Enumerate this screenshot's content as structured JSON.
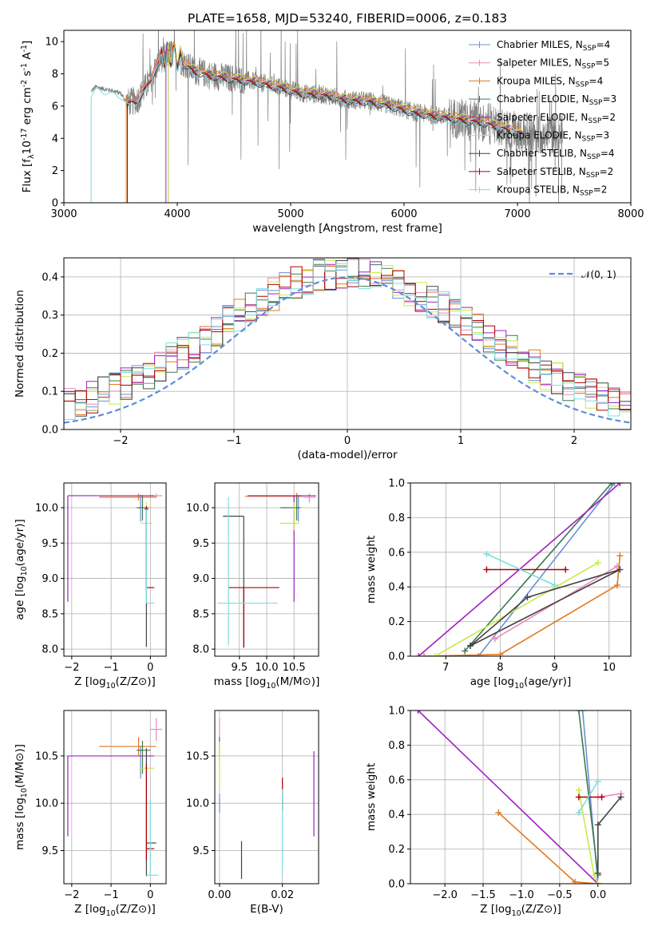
{
  "page": {
    "title": "PLATE=1658, MJD=53240, FIBERID=0006, z=0.183"
  },
  "colors": {
    "Chabrier MILES": "#6b8fd6",
    "Salpeter MILES": "#e98bbd",
    "Kroupa MILES": "#e07a1f",
    "Chabrier ELODIE": "#3d7a4f",
    "Salpeter ELODIE": "#a020c0",
    "Kroupa ELODIE": "#c8ea4a",
    "Chabrier STELIB": "#444444",
    "Salpeter STELIB": "#b00000",
    "Kroupa STELIB": "#7fdde0",
    "data": "#808080",
    "normal": "#5b8ed8"
  },
  "chart_data": [
    {
      "id": "spectrum",
      "type": "line",
      "title": "PLATE=1658, MJD=53240, FIBERID=0006, z=0.183",
      "xlabel": "wavelength [Angstrom, rest frame]",
      "ylabel": "Flux [f$_{\\lambda}$10$^{-17}$ erg cm$^{-2}$ s$^{-1}$ A$^{-1}$]",
      "xlim": [
        3000,
        8000
      ],
      "ylim": [
        0,
        10.7
      ],
      "xticks": [
        3000,
        4000,
        5000,
        6000,
        7000,
        8000
      ],
      "yticks": [
        0,
        2,
        4,
        6,
        8,
        10
      ],
      "grid": false,
      "legend_position": "top-right",
      "legend": [
        {
          "label": "Chabrier MILES, N",
          "sub": "SSP",
          "suffix": "=4",
          "color": "Chabrier MILES"
        },
        {
          "label": "Salpeter MILES, N",
          "sub": "SSP",
          "suffix": "=5",
          "color": "Salpeter MILES"
        },
        {
          "label": "Kroupa MILES, N",
          "sub": "SSP",
          "suffix": "=4",
          "color": "Kroupa MILES"
        },
        {
          "label": "Chabrier ELODIE, N",
          "sub": "SSP",
          "suffix": "=3",
          "color": "Chabrier ELODIE"
        },
        {
          "label": "Salpeter ELODIE, N",
          "sub": "SSP",
          "suffix": "=2",
          "color": "Salpeter ELODIE"
        },
        {
          "label": "Kroupa ELODIE, N",
          "sub": "SSP",
          "suffix": "=3",
          "color": "Kroupa ELODIE"
        },
        {
          "label": "Chabrier STELIB, N",
          "sub": "SSP",
          "suffix": "=4",
          "color": "Chabrier STELIB"
        },
        {
          "label": "Salpeter STELIB, N",
          "sub": "SSP",
          "suffix": "=2",
          "color": "Salpeter STELIB"
        },
        {
          "label": "Kroupa STELIB, N",
          "sub": "SSP",
          "suffix": "=2",
          "color": "Kroupa STELIB"
        }
      ],
      "continuum": {
        "x": [
          3240,
          3280,
          3330,
          3400,
          3500,
          3560,
          3650,
          3750,
          3850,
          3950,
          4050,
          4150,
          4300,
          4500,
          4700,
          4900,
          5100,
          5300,
          5500,
          5700,
          5900,
          6100,
          6300,
          6500,
          6700,
          6900,
          7050
        ],
        "y": [
          6.9,
          7.2,
          7.1,
          7.0,
          6.8,
          6.2,
          6.4,
          7.5,
          8.9,
          9.3,
          8.7,
          8.2,
          7.9,
          7.7,
          7.5,
          7.2,
          6.8,
          6.7,
          6.4,
          6.3,
          6.0,
          5.6,
          5.4,
          5.2,
          5.0,
          4.6,
          4.3
        ]
      },
      "model_start_wavelength": [
        3560,
        3560,
        3550,
        3920,
        3900,
        3920,
        3560,
        3560,
        3240
      ],
      "data_range": [
        3240,
        7400
      ]
    },
    {
      "id": "residuals",
      "type": "histogram",
      "xlabel": "(data-model)/error",
      "ylabel": "Normed distribution",
      "xlim": [
        -2.5,
        2.5
      ],
      "ylim": [
        0,
        0.45
      ],
      "xticks": [
        -2,
        -1,
        0,
        1,
        2
      ],
      "yticks": [
        0.0,
        0.1,
        0.2,
        0.3,
        0.4
      ],
      "grid": true,
      "legend_position": "top-right",
      "legend": [
        {
          "label": "𝒩(0, 1)",
          "style": "dashed",
          "color": "normal"
        }
      ],
      "bin_width": 0.1,
      "normal": {
        "mean": 0,
        "sigma": 1
      }
    },
    {
      "id": "age-vs-Z",
      "type": "errorbar",
      "xlabel": "Z [log$_{10}$(Z/Z$_\\odot$)]",
      "ylabel": "age  [log$_{10}$(age/yr)]",
      "xlim": [
        -2.2,
        0.4
      ],
      "ylim": [
        7.9,
        10.35
      ],
      "xticks": [
        -2,
        -1,
        0
      ],
      "yticks": [
        8.0,
        8.5,
        9.0,
        9.5,
        10.0
      ],
      "grid": true,
      "points": [
        {
          "x": -0.25,
          "y": 10.0,
          "xerr": [
            0.05,
            0.05
          ],
          "yerr": [
            0.2,
            0.18
          ],
          "color": "Chabrier MILES"
        },
        {
          "x": 0.15,
          "y": 10.17,
          "xerr": [
            0.15,
            0.15
          ],
          "yerr": [
            0.03,
            0.03
          ],
          "color": "Salpeter MILES"
        },
        {
          "x": -0.3,
          "y": 10.15,
          "xerr": [
            1.0,
            0.45
          ],
          "yerr": [
            0.05,
            0.05
          ],
          "color": "Kroupa MILES"
        },
        {
          "x": -0.2,
          "y": 10.0,
          "xerr": [
            0.15,
            0.15
          ],
          "yerr": [
            0.18,
            0.18
          ],
          "color": "Chabrier ELODIE"
        },
        {
          "x": -2.1,
          "y": 10.17,
          "xerr": [
            0.0,
            2.2
          ],
          "yerr": [
            1.5,
            0.0
          ],
          "color": "Salpeter ELODIE"
        },
        {
          "x": -0.1,
          "y": 9.78,
          "xerr": [
            0.15,
            0.15
          ],
          "yerr": [
            0.1,
            0.3
          ],
          "color": "Kroupa ELODIE"
        },
        {
          "x": -0.1,
          "y": 9.98,
          "xerr": [
            0.05,
            0.05
          ],
          "yerr": [
            1.95,
            0.0
          ],
          "color": "Chabrier STELIB"
        },
        {
          "x": -0.1,
          "y": 8.87,
          "xerr": [
            0.0,
            0.2
          ],
          "yerr": [
            0.0,
            1.15
          ],
          "color": "Salpeter STELIB"
        },
        {
          "x": -0.1,
          "y": 8.65,
          "xerr": [
            0.0,
            0.2
          ],
          "yerr": [
            0.0,
            1.33
          ],
          "color": "Kroupa STELIB"
        }
      ]
    },
    {
      "id": "age-vs-mass",
      "type": "errorbar",
      "xlabel": "mass [log$_{10}$(M/M$_\\odot$)]",
      "ylabel": "",
      "xlim": [
        9.05,
        10.95
      ],
      "ylim": [
        7.9,
        10.35
      ],
      "xticks": [
        9.5,
        10.0,
        10.5
      ],
      "yticks": [
        8.0,
        8.5,
        9.0,
        9.5,
        10.0
      ],
      "grid": true,
      "points": [
        {
          "x": 10.58,
          "y": 10.0,
          "xerr": [
            0.05,
            0.05
          ],
          "yerr": [
            0.2,
            0.18
          ],
          "color": "Chabrier MILES"
        },
        {
          "x": 10.78,
          "y": 10.15,
          "xerr": [
            0.12,
            0.12
          ],
          "yerr": [
            0.08,
            0.05
          ],
          "color": "Salpeter MILES"
        },
        {
          "x": 10.55,
          "y": 10.16,
          "xerr": [
            0.95,
            0.1
          ],
          "yerr": [
            0.05,
            0.05
          ],
          "color": "Kroupa MILES"
        },
        {
          "x": 10.55,
          "y": 10.0,
          "xerr": [
            0.3,
            0.05
          ],
          "yerr": [
            0.18,
            0.18
          ],
          "color": "Chabrier ELODIE"
        },
        {
          "x": 10.5,
          "y": 10.17,
          "xerr": [
            0.85,
            0.4
          ],
          "yerr": [
            1.5,
            0.0
          ],
          "color": "Salpeter ELODIE"
        },
        {
          "x": 10.5,
          "y": 9.78,
          "xerr": [
            0.25,
            0.1
          ],
          "yerr": [
            0.1,
            0.3
          ],
          "color": "Kroupa ELODIE"
        },
        {
          "x": 9.58,
          "y": 9.88,
          "xerr": [
            0.38,
            0.0
          ],
          "yerr": [
            1.85,
            0.0
          ],
          "color": "Chabrier STELIB"
        },
        {
          "x": 9.58,
          "y": 8.87,
          "xerr": [
            0.28,
            0.65
          ],
          "yerr": [
            0.85,
            0.0
          ],
          "color": "Salpeter STELIB"
        },
        {
          "x": 9.3,
          "y": 8.65,
          "xerr": [
            0.2,
            0.9
          ],
          "yerr": [
            0.6,
            1.5
          ],
          "color": "Kroupa STELIB"
        }
      ]
    },
    {
      "id": "weight-vs-age",
      "type": "line",
      "xlabel": "age  [log$_{10}$(age/yr)]",
      "ylabel": "mass weight",
      "xlim": [
        6.35,
        10.4
      ],
      "ylim": [
        0,
        1.0
      ],
      "xticks": [
        7,
        8,
        9,
        10
      ],
      "yticks": [
        0.0,
        0.2,
        0.4,
        0.6,
        0.8,
        1.0
      ],
      "grid": true,
      "series": [
        {
          "color": "Chabrier MILES",
          "x": [
            7.6,
            10.1,
            7.6
          ],
          "y": [
            0.0,
            1.0,
            0.0
          ]
        },
        {
          "color": "Salpeter MILES",
          "x": [
            7.9,
            10.15,
            7.9
          ],
          "y": [
            0.1,
            0.52,
            0.1
          ]
        },
        {
          "color": "Kroupa MILES",
          "x": [
            6.6,
            8.0,
            10.15,
            10.2
          ],
          "y": [
            0.0,
            0.01,
            0.41,
            0.58
          ]
        },
        {
          "color": "Chabrier ELODIE",
          "x": [
            7.35,
            10.05
          ],
          "y": [
            0.03,
            1.0
          ]
        },
        {
          "color": "Salpeter ELODIE",
          "x": [
            6.5,
            10.2
          ],
          "y": [
            0.0,
            1.0
          ]
        },
        {
          "color": "Kroupa ELODIE",
          "x": [
            6.8,
            9.8,
            6.8
          ],
          "y": [
            0.0,
            0.54,
            0.0
          ]
        },
        {
          "color": "Chabrier STELIB",
          "x": [
            7.45,
            8.5,
            10.2,
            7.45
          ],
          "y": [
            0.06,
            0.34,
            0.5,
            0.06
          ]
        },
        {
          "color": "Salpeter STELIB",
          "x": [
            7.75,
            9.2
          ],
          "y": [
            0.5,
            0.5
          ]
        },
        {
          "color": "Kroupa STELIB",
          "x": [
            7.75,
            9.0
          ],
          "y": [
            0.59,
            0.41
          ]
        }
      ]
    },
    {
      "id": "mass-vs-Z",
      "type": "errorbar",
      "xlabel": "Z [log$_{10}$(Z/Z$_\\odot$)]",
      "ylabel": "mass [log$_{10}$(M/M$_\\odot$)]",
      "xlim": [
        -2.2,
        0.4
      ],
      "ylim": [
        9.15,
        10.98
      ],
      "xticks": [
        -2,
        -1,
        0
      ],
      "yticks": [
        9.5,
        10.0,
        10.5
      ],
      "grid": true,
      "points": [
        {
          "x": -0.25,
          "y": 10.56,
          "xerr": [
            0.05,
            0.05
          ],
          "yerr": [
            0.3,
            0.05
          ],
          "color": "Chabrier MILES"
        },
        {
          "x": 0.15,
          "y": 10.78,
          "xerr": [
            0.15,
            0.15
          ],
          "yerr": [
            0.12,
            0.12
          ],
          "color": "Salpeter MILES"
        },
        {
          "x": -0.3,
          "y": 10.6,
          "xerr": [
            1.0,
            0.45
          ],
          "yerr": [
            0.1,
            0.1
          ],
          "color": "Kroupa MILES"
        },
        {
          "x": -0.2,
          "y": 10.56,
          "xerr": [
            0.15,
            0.2
          ],
          "yerr": [
            0.25,
            0.1
          ],
          "color": "Chabrier ELODIE"
        },
        {
          "x": -2.1,
          "y": 10.5,
          "xerr": [
            0.0,
            2.2
          ],
          "yerr": [
            0.85,
            0.0
          ],
          "color": "Salpeter ELODIE"
        },
        {
          "x": -0.1,
          "y": 10.37,
          "xerr": [
            0.15,
            0.2
          ],
          "yerr": [
            0.1,
            0.1
          ],
          "color": "Kroupa ELODIE"
        },
        {
          "x": -0.1,
          "y": 9.58,
          "xerr": [
            0.0,
            0.25
          ],
          "yerr": [
            0.35,
            1.0
          ],
          "color": "Chabrier STELIB"
        },
        {
          "x": -0.1,
          "y": 9.52,
          "xerr": [
            0.0,
            0.2
          ],
          "yerr": [
            0.12,
            0.9
          ],
          "color": "Salpeter STELIB"
        },
        {
          "x": 0.0,
          "y": 9.24,
          "xerr": [
            0.1,
            0.2
          ],
          "yerr": [
            0.0,
            0.8
          ],
          "color": "Kroupa STELIB"
        }
      ]
    },
    {
      "id": "mass-vs-EBV",
      "type": "errorbar",
      "xlabel": "E(B-V)",
      "ylabel": "",
      "xlim": [
        -0.0015,
        0.0315
      ],
      "ylim": [
        9.15,
        10.98
      ],
      "xticks": [
        0.0,
        0.02
      ],
      "yticks": [
        9.5,
        10.0,
        10.5
      ],
      "grid": true,
      "points": [
        {
          "x": 0.0,
          "y": 10.0,
          "xerr": [
            0,
            0
          ],
          "yerr": [
            0.1,
            0.1
          ],
          "color": "Chabrier MILES"
        },
        {
          "x": 0.0,
          "y": 10.78,
          "xerr": [
            0,
            0
          ],
          "yerr": [
            0.12,
            0.12
          ],
          "color": "Salpeter MILES"
        },
        {
          "x": 0.0,
          "y": 10.55,
          "xerr": [
            0,
            0
          ],
          "yerr": [
            0.1,
            0.1
          ],
          "color": "Kroupa MILES"
        },
        {
          "x": 0.0,
          "y": 10.6,
          "xerr": [
            0,
            0
          ],
          "yerr": [
            0.1,
            0.1
          ],
          "color": "Chabrier ELODIE"
        },
        {
          "x": 0.03,
          "y": 10.1,
          "xerr": [
            0,
            0
          ],
          "yerr": [
            0.45,
            0.45
          ],
          "color": "Salpeter ELODIE"
        },
        {
          "x": 0.0,
          "y": 10.4,
          "xerr": [
            0,
            0
          ],
          "yerr": [
            0.25,
            0.25
          ],
          "color": "Kroupa ELODIE"
        },
        {
          "x": 0.007,
          "y": 9.4,
          "xerr": [
            0,
            0
          ],
          "yerr": [
            0.2,
            0.2
          ],
          "color": "Chabrier STELIB"
        },
        {
          "x": 0.02,
          "y": 10.1,
          "xerr": [
            0,
            0
          ],
          "yerr": [
            0.17,
            0.17
          ],
          "color": "Salpeter STELIB"
        },
        {
          "x": 0.02,
          "y": 9.7,
          "xerr": [
            0,
            0
          ],
          "yerr": [
            0.45,
            0.45
          ],
          "color": "Kroupa STELIB"
        }
      ]
    },
    {
      "id": "weight-vs-Z",
      "type": "line",
      "xlabel": "Z [log$_{10}$(Z/Z$_\\odot$)]",
      "ylabel": "mass weight",
      "xlim": [
        -2.45,
        0.43
      ],
      "ylim": [
        0,
        1.0
      ],
      "xticks": [
        -2.0,
        -1.5,
        -1.0,
        -0.5,
        0.0
      ],
      "yticks": [
        0.0,
        0.2,
        0.4,
        0.6,
        0.8,
        1.0
      ],
      "grid": true,
      "series": [
        {
          "color": "Chabrier MILES",
          "x": [
            -0.2,
            0.0,
            -0.2
          ],
          "y": [
            1.0,
            0.0,
            1.0
          ]
        },
        {
          "color": "Salpeter MILES",
          "x": [
            0.0,
            0.3,
            0.0
          ],
          "y": [
            0.5,
            0.52,
            0.5
          ]
        },
        {
          "color": "Kroupa MILES",
          "x": [
            -1.3,
            -0.3,
            0.0
          ],
          "y": [
            0.41,
            0.01,
            0.0
          ]
        },
        {
          "color": "Chabrier ELODIE",
          "x": [
            -0.25,
            0.0
          ],
          "y": [
            1.0,
            0.05
          ]
        },
        {
          "color": "Salpeter ELODIE",
          "x": [
            -2.35,
            0.0
          ],
          "y": [
            1.0,
            0.0
          ]
        },
        {
          "color": "Kroupa ELODIE",
          "x": [
            -0.25,
            -0.05,
            0.0
          ],
          "y": [
            0.54,
            0.05,
            0.0
          ]
        },
        {
          "color": "Chabrier STELIB",
          "x": [
            0.3,
            0.0,
            0.0
          ],
          "y": [
            0.5,
            0.34,
            0.06
          ]
        },
        {
          "color": "Salpeter STELIB",
          "x": [
            -0.25,
            0.05
          ],
          "y": [
            0.5,
            0.5
          ]
        },
        {
          "color": "Kroupa STELIB",
          "x": [
            -0.25,
            0.0
          ],
          "y": [
            0.41,
            0.59
          ]
        }
      ]
    }
  ]
}
